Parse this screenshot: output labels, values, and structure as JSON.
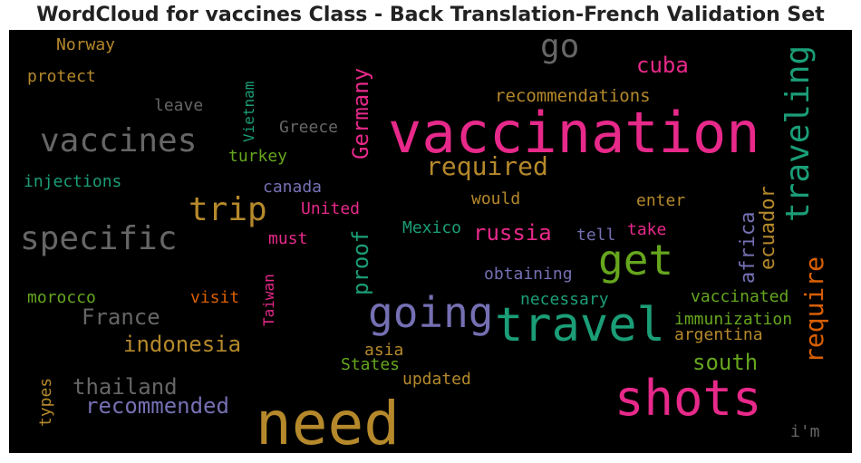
{
  "title": "WordCloud for vaccines Class - Back Translation-French Validation Set",
  "colors": {
    "background": "#000000",
    "pink": "#e7298a",
    "gold": "#b5892b",
    "teal": "#1b9e77",
    "gray": "#666666",
    "green": "#66a61e",
    "purple": "#7570b3",
    "orange": "#d95f02"
  },
  "words": [
    {
      "text": "need",
      "color": "pink2gold"
    },
    {
      "text": "vaccination"
    },
    {
      "text": "shots"
    },
    {
      "text": "travel"
    },
    {
      "text": "going"
    },
    {
      "text": "get"
    },
    {
      "text": "traveling"
    },
    {
      "text": "vaccines"
    },
    {
      "text": "specific"
    },
    {
      "text": "trip"
    },
    {
      "text": "go"
    },
    {
      "text": "required"
    },
    {
      "text": "require"
    },
    {
      "text": "cuba"
    },
    {
      "text": "Germany"
    },
    {
      "text": "recommendations"
    },
    {
      "text": "ecuador"
    },
    {
      "text": "africa"
    },
    {
      "text": "russia"
    },
    {
      "text": "proof"
    },
    {
      "text": "indonesia"
    },
    {
      "text": "France"
    },
    {
      "text": "thailand"
    },
    {
      "text": "recommended"
    },
    {
      "text": "south"
    },
    {
      "text": "Norway"
    },
    {
      "text": "protect"
    },
    {
      "text": "leave"
    },
    {
      "text": "Vietnam"
    },
    {
      "text": "Greece"
    },
    {
      "text": "turkey"
    },
    {
      "text": "injections"
    },
    {
      "text": "canada"
    },
    {
      "text": "would"
    },
    {
      "text": "enter"
    },
    {
      "text": "United"
    },
    {
      "text": "Mexico"
    },
    {
      "text": "tell"
    },
    {
      "text": "take"
    },
    {
      "text": "must"
    },
    {
      "text": "obtaining"
    },
    {
      "text": "morocco"
    },
    {
      "text": "visit"
    },
    {
      "text": "Taiwan"
    },
    {
      "text": "necessary"
    },
    {
      "text": "vaccinated"
    },
    {
      "text": "immunization"
    },
    {
      "text": "argentina"
    },
    {
      "text": "asia"
    },
    {
      "text": "States"
    },
    {
      "text": "updated"
    },
    {
      "text": "types"
    },
    {
      "text": "i'm"
    }
  ]
}
